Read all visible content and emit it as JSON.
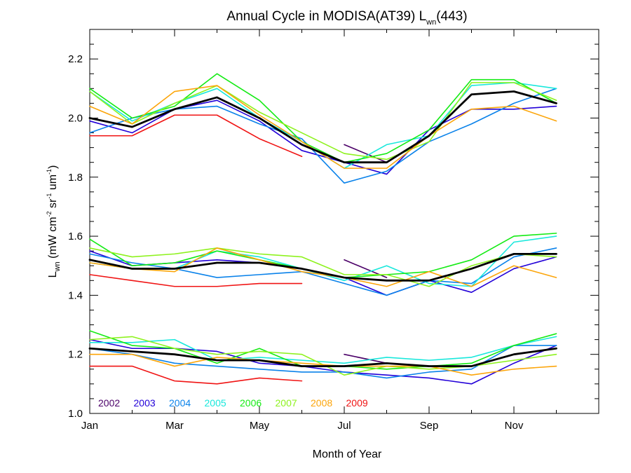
{
  "chart_data": {
    "type": "line",
    "title": {
      "main": "Annual Cycle in MODISA(AT39) L",
      "sub": "wn",
      "suffix": "(443)"
    },
    "xlabel": "Month of Year",
    "ylabel": {
      "prefix": "L",
      "prefix_sub": "wn",
      "unit_open": " (mW cm",
      "unit_exp1": "-2",
      "unit_mid1": " sr",
      "unit_exp2": "-1",
      "unit_mid2": " um",
      "unit_exp3": "-1",
      "unit_close": ")"
    },
    "xlim": [
      1,
      13
    ],
    "ylim": [
      1.0,
      2.3
    ],
    "x_ticks": [
      {
        "value": 1,
        "label": "Jan"
      },
      {
        "value": 3,
        "label": "Mar"
      },
      {
        "value": 5,
        "label": "May"
      },
      {
        "value": 7,
        "label": "Jul"
      },
      {
        "value": 9,
        "label": "Sep"
      },
      {
        "value": 11,
        "label": "Nov"
      }
    ],
    "x_minor_ticks": [
      2,
      4,
      6,
      8,
      10,
      12
    ],
    "y_ticks": [
      {
        "value": 1.0,
        "label": "1.0"
      },
      {
        "value": 1.2,
        "label": "1.2"
      },
      {
        "value": 1.4,
        "label": "1.4"
      },
      {
        "value": 1.6,
        "label": "1.6"
      },
      {
        "value": 1.8,
        "label": "1.8"
      },
      {
        "value": 2.0,
        "label": "2.0"
      },
      {
        "value": 2.2,
        "label": "2.2"
      }
    ],
    "y_minor_step": 0.05,
    "grid": false,
    "legend_placement": "bottom-left inside plot",
    "x": [
      1,
      2,
      3,
      4,
      5,
      6,
      7,
      8,
      9,
      10,
      11,
      12
    ],
    "series": [
      {
        "name": "2002",
        "color": "#4b0068",
        "groups": [
          [
            null,
            null,
            null,
            null,
            null,
            null,
            1.91,
            1.85,
            null,
            null,
            null,
            null
          ],
          [
            null,
            null,
            null,
            null,
            null,
            null,
            1.52,
            1.46,
            null,
            null,
            null,
            null
          ],
          [
            null,
            null,
            null,
            null,
            null,
            null,
            1.2,
            1.17,
            null,
            null,
            null,
            null
          ]
        ]
      },
      {
        "name": "2003",
        "color": "#2200d8",
        "groups": [
          [
            1.99,
            1.95,
            2.03,
            2.06,
            1.99,
            1.89,
            1.85,
            1.81,
            1.96,
            2.03,
            2.03,
            2.04
          ],
          [
            1.55,
            1.5,
            1.51,
            1.52,
            1.51,
            1.49,
            1.46,
            1.4,
            1.45,
            1.41,
            1.49,
            1.53
          ],
          [
            1.25,
            1.22,
            1.22,
            1.21,
            1.17,
            1.16,
            1.14,
            1.13,
            1.12,
            1.1,
            1.17,
            1.23
          ]
        ]
      },
      {
        "name": "2004",
        "color": "#0a82ea",
        "groups": [
          [
            1.95,
            2.0,
            2.03,
            2.04,
            1.98,
            1.93,
            1.78,
            1.82,
            1.92,
            1.98,
            2.05,
            2.1
          ],
          [
            1.54,
            1.51,
            1.49,
            1.46,
            1.47,
            1.48,
            1.44,
            1.4,
            1.45,
            1.44,
            1.53,
            1.56
          ],
          [
            1.22,
            1.2,
            1.17,
            1.16,
            1.15,
            1.14,
            1.14,
            1.12,
            1.14,
            1.15,
            1.23,
            1.23
          ]
        ]
      },
      {
        "name": "2005",
        "color": "#19e8dc",
        "groups": [
          [
            2.09,
            1.99,
            2.05,
            2.1,
            2.0,
            1.92,
            1.83,
            1.91,
            1.94,
            2.11,
            2.12,
            2.1
          ],
          [
            1.51,
            1.49,
            1.49,
            1.55,
            1.53,
            1.49,
            1.45,
            1.5,
            1.44,
            1.43,
            1.58,
            1.6
          ],
          [
            1.24,
            1.24,
            1.25,
            1.18,
            1.19,
            1.18,
            1.17,
            1.19,
            1.18,
            1.19,
            1.23,
            1.26
          ]
        ]
      },
      {
        "name": "2006",
        "color": "#14eb14",
        "groups": [
          [
            2.1,
            2.0,
            2.04,
            2.15,
            2.06,
            1.92,
            1.85,
            1.88,
            1.96,
            2.13,
            2.13,
            2.05
          ],
          [
            1.59,
            1.5,
            1.51,
            1.55,
            1.52,
            1.49,
            1.46,
            1.47,
            1.48,
            1.52,
            1.6,
            1.61
          ],
          [
            1.28,
            1.23,
            1.22,
            1.17,
            1.22,
            1.16,
            1.16,
            1.15,
            1.16,
            1.17,
            1.23,
            1.27
          ]
        ]
      },
      {
        "name": "2007",
        "color": "#8ef21e",
        "groups": [
          [
            2.09,
            1.98,
            2.05,
            2.11,
            2.02,
            1.95,
            1.88,
            1.86,
            1.92,
            2.12,
            2.12,
            2.06
          ],
          [
            1.56,
            1.53,
            1.54,
            1.56,
            1.54,
            1.53,
            1.47,
            1.47,
            1.43,
            1.5,
            1.54,
            1.53
          ],
          [
            1.25,
            1.26,
            1.22,
            1.2,
            1.21,
            1.2,
            1.13,
            1.16,
            1.15,
            1.16,
            1.18,
            1.2
          ]
        ]
      },
      {
        "name": "2008",
        "color": "#fca50a",
        "groups": [
          [
            2.04,
            1.98,
            2.09,
            2.11,
            2.01,
            1.92,
            1.83,
            1.83,
            1.94,
            2.03,
            2.04,
            1.99
          ],
          [
            1.51,
            1.49,
            1.48,
            1.56,
            1.52,
            1.48,
            1.46,
            1.43,
            1.48,
            1.43,
            1.5,
            1.46
          ],
          [
            1.2,
            1.2,
            1.16,
            1.19,
            1.18,
            1.17,
            1.16,
            1.16,
            1.16,
            1.13,
            1.15,
            1.16
          ]
        ]
      },
      {
        "name": "2009",
        "color": "#f01414",
        "groups": [
          [
            1.94,
            1.94,
            2.01,
            2.01,
            1.93,
            1.87,
            null,
            null,
            null,
            null,
            null,
            null
          ],
          [
            1.47,
            1.45,
            1.43,
            1.43,
            1.44,
            1.44,
            null,
            null,
            null,
            null,
            null,
            null
          ],
          [
            1.16,
            1.16,
            1.11,
            1.1,
            1.12,
            1.11,
            null,
            null,
            null,
            null,
            null,
            null
          ]
        ]
      },
      {
        "name": "",
        "color": "#000000",
        "is_mean": true,
        "groups": [
          [
            2.0,
            1.97,
            2.03,
            2.07,
            2.0,
            1.91,
            1.85,
            1.85,
            1.94,
            2.08,
            2.09,
            2.05
          ],
          [
            1.52,
            1.49,
            1.49,
            1.51,
            1.51,
            1.49,
            1.46,
            1.45,
            1.45,
            1.49,
            1.54,
            1.54
          ],
          [
            1.22,
            1.21,
            1.2,
            1.18,
            1.18,
            1.16,
            1.16,
            1.17,
            1.16,
            1.16,
            1.2,
            1.22
          ]
        ]
      }
    ]
  }
}
